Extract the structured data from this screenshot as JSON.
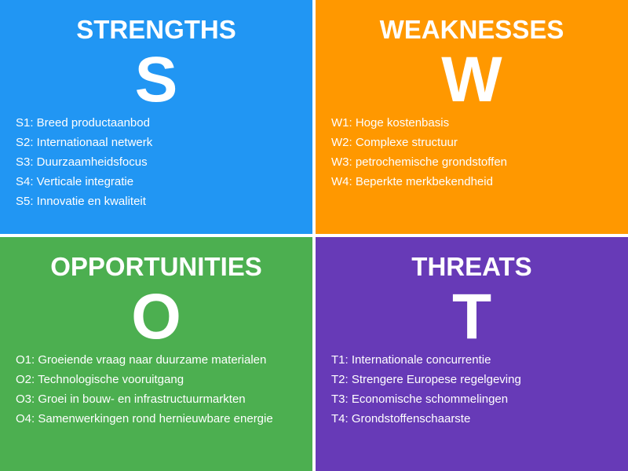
{
  "swot": {
    "strengths": {
      "title": "STRENGTHS",
      "letter": "S",
      "color": "#2196f3",
      "items": [
        "S1: Breed productaanbod",
        "S2: Internationaal netwerk",
        "S3: Duurzaamheidsfocus",
        "S4: Verticale integratie",
        "S5: Innovatie en kwaliteit"
      ]
    },
    "weaknesses": {
      "title": "WEAKNESSES",
      "letter": "W",
      "color": "#ff9800",
      "items": [
        "W1: Hoge kostenbasis",
        "W2: Complexe structuur",
        "W3: petrochemische grondstoffen",
        "W4: Beperkte merkbekendheid"
      ]
    },
    "opportunities": {
      "title": "OPPORTUNITIES",
      "letter": "O",
      "color": "#4caf50",
      "items": [
        "O1: Groeiende vraag naar duurzame materialen",
        "O2: Technologische vooruitgang",
        "O3: Groei in bouw- en infrastructuurmarkten",
        "O4: Samenwerkingen rond hernieuwbare energie"
      ]
    },
    "threats": {
      "title": "THREATS",
      "letter": "T",
      "color": "#673ab7",
      "items": [
        "T1: Internationale concurrentie",
        "T2: Strengere Europese regelgeving",
        "T3: Economische schommelingen",
        "T4: Grondstoffenschaarste"
      ]
    }
  }
}
